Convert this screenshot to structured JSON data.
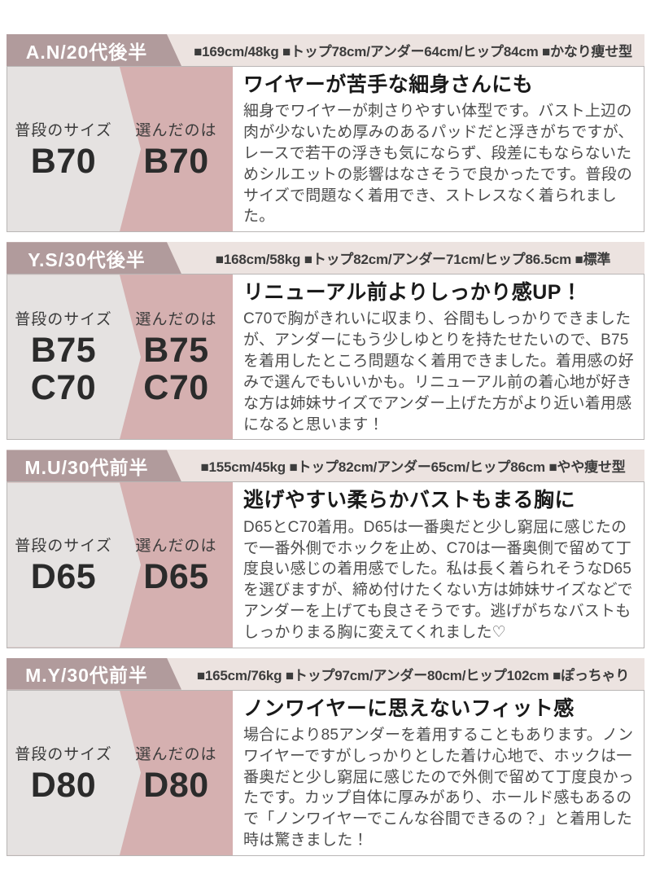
{
  "colors": {
    "header_badge_bg": "#b19b9c",
    "header_bar_bg": "#ece3e0",
    "usual_panel_bg": "#e5e2e1",
    "chosen_panel_bg": "#d5b0b0",
    "body_border": "#b9b6b5",
    "badge_text": "#ffffff",
    "title_text": "#1a1a1a",
    "body_text": "#4d4d4d"
  },
  "labels": {
    "usual_size": "普段のサイズ",
    "chosen_size": "選んだのは"
  },
  "sections": [
    {
      "person": "A.N/20代後半",
      "stats": "■169cm/48kg ■トップ78cm/アンダー64cm/ヒップ84cm ■かなり痩せ型",
      "usual_sizes": [
        "B70"
      ],
      "chosen_sizes": [
        "B70"
      ],
      "title": "ワイヤーが苦手な細身さんにも",
      "text": "細身でワイヤーが刺さりやすい体型です。バスト上辺の肉が少ないため厚みのあるパッドだと浮きがちですが、レースで若干の浮きも気にならず、段差にもならないためシルエットの影響はなさそうで良かったです。普段のサイズで問題なく着用でき、ストレスなく着られました。"
    },
    {
      "person": "Y.S/30代後半",
      "stats": "■168cm/58kg ■トップ82cm/アンダー71cm/ヒップ86.5cm ■標準",
      "usual_sizes": [
        "B75",
        "C70"
      ],
      "chosen_sizes": [
        "B75",
        "C70"
      ],
      "title": "リニューアル前よりしっかり感UP！",
      "text": "C70で胸がきれいに収まり、谷間もしっかりできましたが、アンダーにもう少しゆとりを持たせたいので、B75を着用したところ問題なく着用できました。着用感の好みで選んでもいいかも。リニューアル前の着心地が好きな方は姉妹サイズでアンダー上げた方がより近い着用感になると思います！"
    },
    {
      "person": "M.U/30代前半",
      "stats": "■155cm/45kg ■トップ82cm/アンダー65cm/ヒップ86cm ■やや痩せ型",
      "usual_sizes": [
        "D65"
      ],
      "chosen_sizes": [
        "D65"
      ],
      "title": "逃げやすい柔らかバストもまる胸に",
      "text": "D65とC70着用。D65は一番奥だと少し窮屈に感じたので一番外側でホックを止め、C70は一番奥側で留めて丁度良い感じの着用感でした。私は長く着られそうなD65を選びますが、締め付けたくない方は姉妹サイズなどでアンダーを上げても良さそうです。逃げがちなバストもしっかりまる胸に変えてくれました♡"
    },
    {
      "person": "M.Y/30代前半",
      "stats": "■165cm/76kg ■トップ97cm/アンダー80cm/ヒップ102cm ■ぽっちゃり",
      "usual_sizes": [
        "D80"
      ],
      "chosen_sizes": [
        "D80"
      ],
      "title": "ノンワイヤーに思えないフィット感",
      "text": "場合により85アンダーを着用することもあります。ノンワイヤーですがしっかりとした着け心地で、ホックは一番奥だと少し窮屈に感じたので外側で留めて丁度良かったです。カップ自体に厚みがあり、ホールド感もあるので「ノンワイヤーでこんな谷間できるの？」と着用した時は驚きました！"
    }
  ]
}
